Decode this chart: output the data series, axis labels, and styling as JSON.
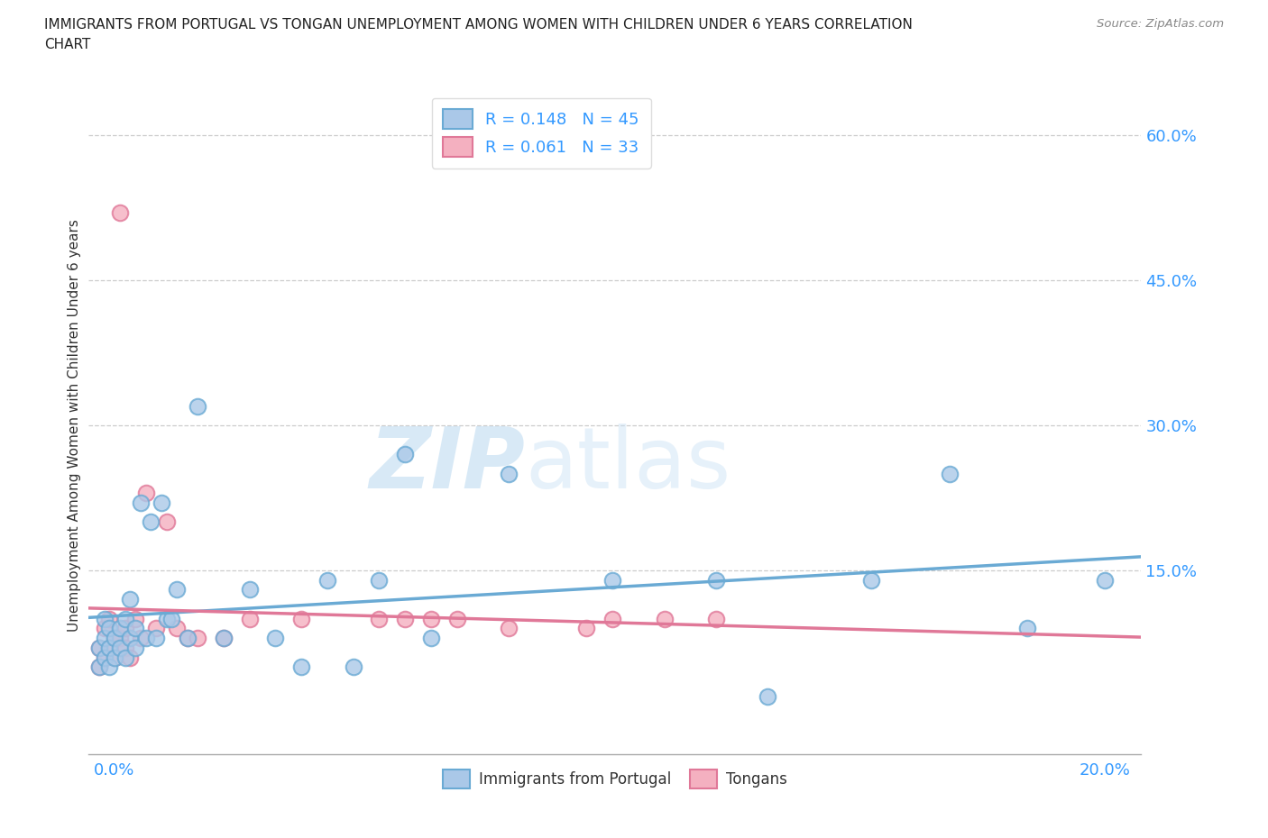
{
  "title_line1": "IMMIGRANTS FROM PORTUGAL VS TONGAN UNEMPLOYMENT AMONG WOMEN WITH CHILDREN UNDER 6 YEARS CORRELATION",
  "title_line2": "CHART",
  "source": "Source: ZipAtlas.com",
  "ylabel": "Unemployment Among Women with Children Under 6 years",
  "ytick_labels": [
    "60.0%",
    "45.0%",
    "30.0%",
    "15.0%"
  ],
  "ytick_values": [
    0.6,
    0.45,
    0.3,
    0.15
  ],
  "xlim": [
    -0.001,
    0.202
  ],
  "ylim": [
    -0.04,
    0.64
  ],
  "color_blue_face": "#aac8e8",
  "color_blue_edge": "#6aaad4",
  "color_pink_face": "#f4b0c0",
  "color_pink_edge": "#e07898",
  "color_line_blue": "#6aaad4",
  "color_line_pink": "#e07898",
  "color_title": "#222222",
  "color_source": "#888888",
  "color_axis_label": "#3399ff",
  "color_grid": "#cccccc",
  "blue_x": [
    0.001,
    0.001,
    0.002,
    0.002,
    0.002,
    0.003,
    0.003,
    0.003,
    0.004,
    0.004,
    0.005,
    0.005,
    0.006,
    0.006,
    0.007,
    0.007,
    0.008,
    0.008,
    0.009,
    0.01,
    0.011,
    0.012,
    0.013,
    0.014,
    0.015,
    0.016,
    0.018,
    0.02,
    0.025,
    0.03,
    0.035,
    0.04,
    0.045,
    0.05,
    0.055,
    0.06,
    0.065,
    0.08,
    0.1,
    0.12,
    0.13,
    0.15,
    0.165,
    0.18,
    0.195
  ],
  "blue_y": [
    0.05,
    0.07,
    0.06,
    0.08,
    0.1,
    0.05,
    0.07,
    0.09,
    0.06,
    0.08,
    0.07,
    0.09,
    0.06,
    0.1,
    0.08,
    0.12,
    0.07,
    0.09,
    0.22,
    0.08,
    0.2,
    0.08,
    0.22,
    0.1,
    0.1,
    0.13,
    0.08,
    0.32,
    0.08,
    0.13,
    0.08,
    0.05,
    0.14,
    0.05,
    0.14,
    0.27,
    0.08,
    0.25,
    0.14,
    0.14,
    0.02,
    0.14,
    0.25,
    0.09,
    0.14
  ],
  "pink_x": [
    0.001,
    0.001,
    0.002,
    0.002,
    0.003,
    0.003,
    0.004,
    0.004,
    0.005,
    0.005,
    0.006,
    0.006,
    0.007,
    0.008,
    0.009,
    0.01,
    0.012,
    0.014,
    0.016,
    0.018,
    0.02,
    0.025,
    0.03,
    0.04,
    0.055,
    0.06,
    0.065,
    0.07,
    0.08,
    0.095,
    0.1,
    0.11,
    0.12
  ],
  "pink_y": [
    0.05,
    0.07,
    0.06,
    0.09,
    0.07,
    0.1,
    0.06,
    0.08,
    0.08,
    0.52,
    0.09,
    0.07,
    0.06,
    0.1,
    0.08,
    0.23,
    0.09,
    0.2,
    0.09,
    0.08,
    0.08,
    0.08,
    0.1,
    0.1,
    0.1,
    0.1,
    0.1,
    0.1,
    0.09,
    0.09,
    0.1,
    0.1,
    0.1
  ]
}
